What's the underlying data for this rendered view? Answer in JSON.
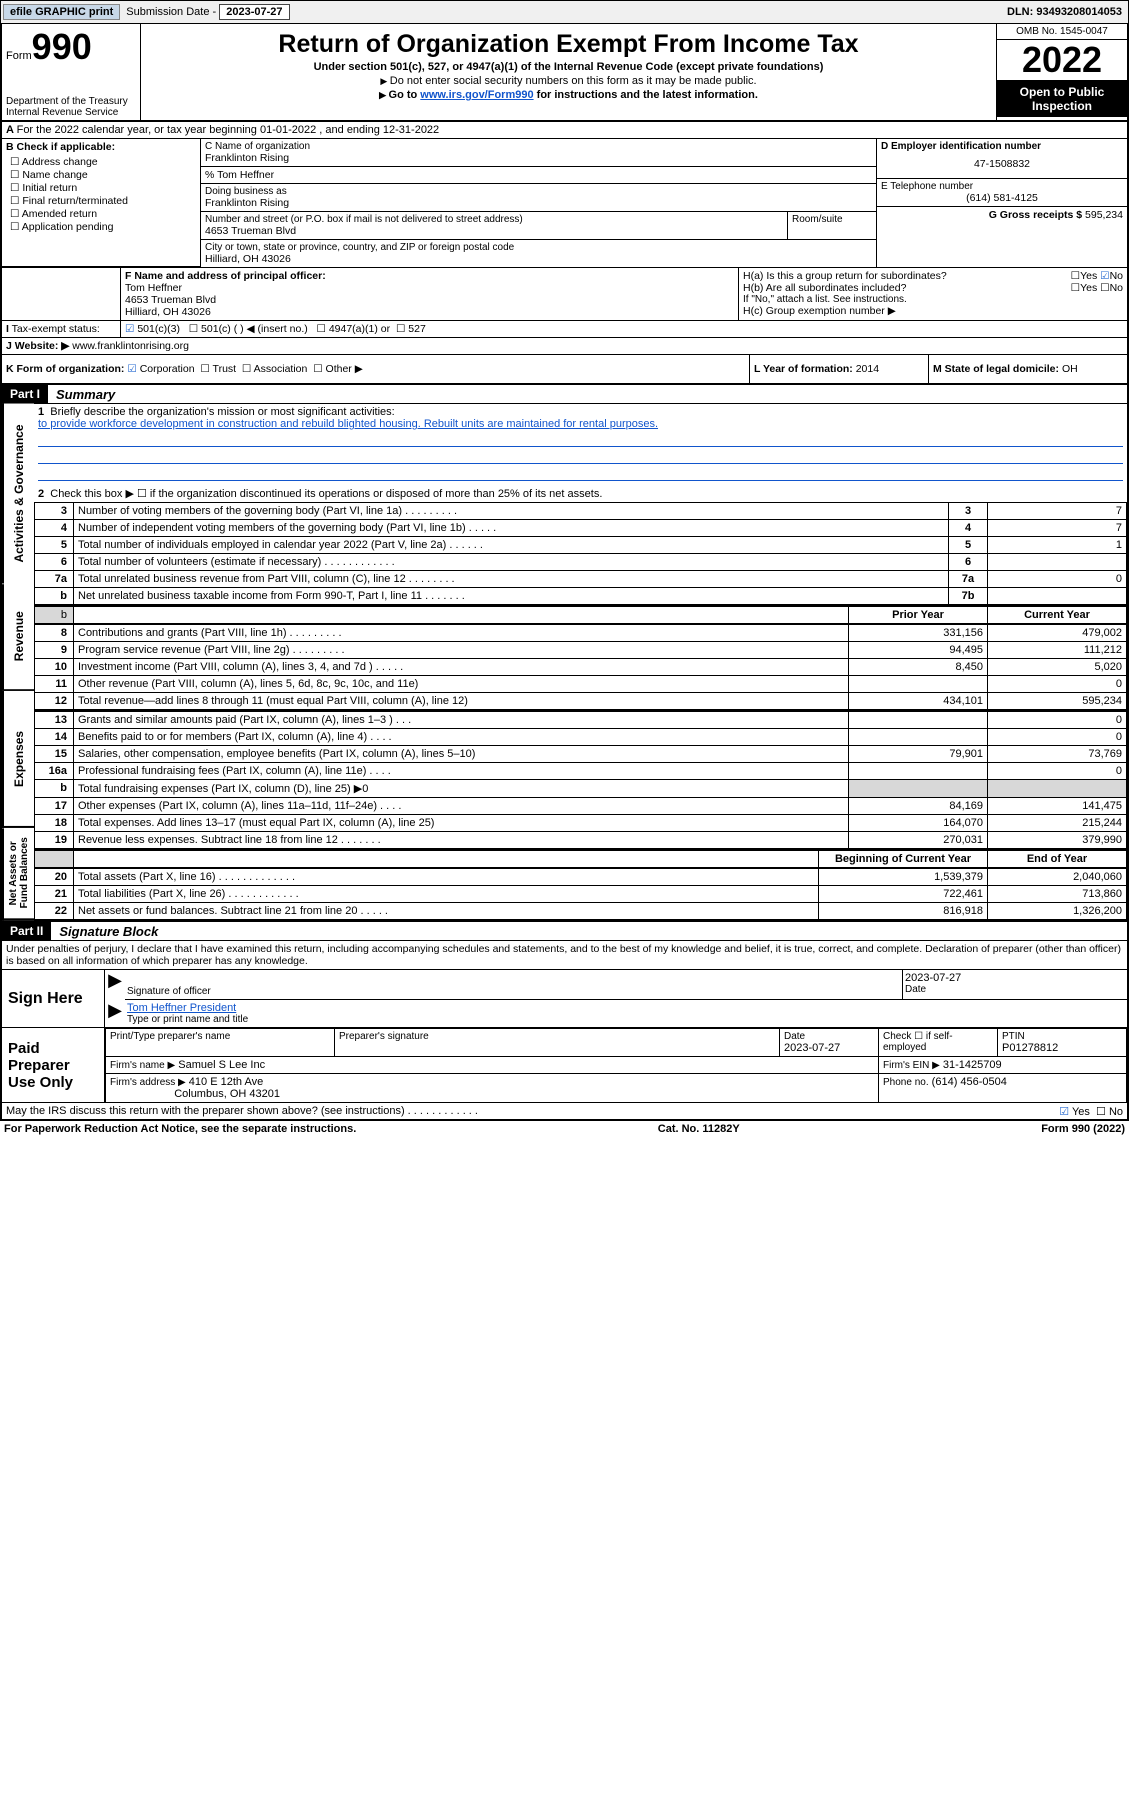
{
  "top": {
    "efile": "efile GRAPHIC print",
    "subm_label": "Submission Date - ",
    "subm_date": "2023-07-27",
    "dln": "DLN: 93493208014053"
  },
  "header": {
    "form_word": "Form",
    "form_num": "990",
    "title": "Return of Organization Exempt From Income Tax",
    "sub1": "Under section 501(c), 527, or 4947(a)(1) of the Internal Revenue Code (except private foundations)",
    "sub2": "Do not enter social security numbers on this form as it may be made public.",
    "sub3_pre": "Go to ",
    "sub3_link": "www.irs.gov/Form990",
    "sub3_post": " for instructions and the latest information.",
    "dept1": "Department of the Treasury",
    "dept2": "Internal Revenue Service",
    "omb": "OMB No. 1545-0047",
    "year": "2022",
    "inspect": "Open to Public Inspection"
  },
  "a_line": "For the 2022 calendar year, or tax year beginning 01-01-2022   , and ending 12-31-2022",
  "b": {
    "title": "B Check if applicable:",
    "items": [
      "Address change",
      "Name change",
      "Initial return",
      "Final return/terminated",
      "Amended return",
      "Application pending"
    ]
  },
  "c": {
    "name_label": "C Name of organization",
    "name": "Franklinton Rising",
    "care": "% Tom Heffner",
    "dba_label": "Doing business as",
    "dba": "Franklinton Rising",
    "addr_label": "Number and street (or P.O. box if mail is not delivered to street address)",
    "room_label": "Room/suite",
    "addr": "4653 Trueman Blvd",
    "city_label": "City or town, state or province, country, and ZIP or foreign postal code",
    "city": "Hilliard, OH  43026"
  },
  "d": {
    "label": "D Employer identification number",
    "val": "47-1508832"
  },
  "e": {
    "label": "E Telephone number",
    "val": "(614) 581-4125"
  },
  "g": {
    "label": "G Gross receipts $",
    "val": "595,234"
  },
  "f": {
    "label": "F Name and address of principal officer:",
    "name": "Tom Heffner",
    "addr1": "4653 Trueman Blvd",
    "addr2": "Hilliard, OH  43026"
  },
  "h": {
    "a": "H(a)  Is this a group return for subordinates?",
    "b": "H(b)  Are all subordinates included?",
    "b_note": "If \"No,\" attach a list. See instructions.",
    "c": "H(c)  Group exemption number ▶",
    "yes": "Yes",
    "no": "No"
  },
  "i": {
    "label": "Tax-exempt status:",
    "opts": [
      "501(c)(3)",
      "501(c) (  ) ◀ (insert no.)",
      "4947(a)(1) or",
      "527"
    ]
  },
  "j": {
    "label": "Website: ▶",
    "val": "www.franklintonrising.org"
  },
  "k": {
    "label": "K Form of organization:",
    "opts": [
      "Corporation",
      "Trust",
      "Association",
      "Other ▶"
    ]
  },
  "l": {
    "label": "L Year of formation:",
    "val": "2014"
  },
  "m": {
    "label": "M State of legal domicile:",
    "val": "OH"
  },
  "part1": {
    "header": "Part I",
    "title": "Summary",
    "vlabel1": "Activities & Governance",
    "vlabel2": "Revenue",
    "vlabel3": "Expenses",
    "vlabel4": "Net Assets or Fund Balances",
    "line1": "Briefly describe the organization's mission or most significant activities:",
    "mission": "to provide workforce development in construction and rebuild blighted housing. Rebuilt units are maintained for rental purposes.",
    "line2": "Check this box ▶ ☐  if the organization discontinued its operations or disposed of more than 25% of its net assets.",
    "rows_gov": [
      {
        "n": "3",
        "d": "Number of voting members of the governing body (Part VI, line 1a)  .    .    .    .    .    .    .    .    .",
        "box": "3",
        "v": "7"
      },
      {
        "n": "4",
        "d": "Number of independent voting members of the governing body (Part VI, line 1b)  .    .    .    .    .",
        "box": "4",
        "v": "7"
      },
      {
        "n": "5",
        "d": "Total number of individuals employed in calendar year 2022 (Part V, line 2a)  .    .    .    .    .    .",
        "box": "5",
        "v": "1"
      },
      {
        "n": "6",
        "d": "Total number of volunteers (estimate if necessary)  .    .    .    .    .    .    .    .    .    .    .    .",
        "box": "6",
        "v": ""
      },
      {
        "n": "7a",
        "d": "Total unrelated business revenue from Part VIII, column (C), line 12  .    .    .    .    .    .    .    .",
        "box": "7a",
        "v": "0"
      },
      {
        "n": "b",
        "d": "Net unrelated business taxable income from Form 990-T, Part I, line 11  .    .    .    .    .    .    .",
        "box": "7b",
        "v": ""
      }
    ],
    "col_prior": "Prior Year",
    "col_curr": "Current Year",
    "rows_rev": [
      {
        "n": "8",
        "d": "Contributions and grants (Part VIII, line 1h)  .    .    .    .    .    .    .    .    .",
        "p": "331,156",
        "c": "479,002"
      },
      {
        "n": "9",
        "d": "Program service revenue (Part VIII, line 2g)  .    .    .    .    .    .    .    .    .",
        "p": "94,495",
        "c": "111,212"
      },
      {
        "n": "10",
        "d": "Investment income (Part VIII, column (A), lines 3, 4, and 7d )  .    .    .    .    .",
        "p": "8,450",
        "c": "5,020"
      },
      {
        "n": "11",
        "d": "Other revenue (Part VIII, column (A), lines 5, 6d, 8c, 9c, 10c, and 11e)",
        "p": "",
        "c": "0"
      },
      {
        "n": "12",
        "d": "Total revenue—add lines 8 through 11 (must equal Part VIII, column (A), line 12)",
        "p": "434,101",
        "c": "595,234"
      }
    ],
    "rows_exp": [
      {
        "n": "13",
        "d": "Grants and similar amounts paid (Part IX, column (A), lines 1–3 )  .    .    .",
        "p": "",
        "c": "0"
      },
      {
        "n": "14",
        "d": "Benefits paid to or for members (Part IX, column (A), line 4)  .    .    .    .",
        "p": "",
        "c": "0"
      },
      {
        "n": "15",
        "d": "Salaries, other compensation, employee benefits (Part IX, column (A), lines 5–10)",
        "p": "79,901",
        "c": "73,769"
      },
      {
        "n": "16a",
        "d": "Professional fundraising fees (Part IX, column (A), line 11e)  .    .    .    .",
        "p": "",
        "c": "0"
      },
      {
        "n": "b",
        "d": "Total fundraising expenses (Part IX, column (D), line 25) ▶0",
        "p": "shade",
        "c": "shade"
      },
      {
        "n": "17",
        "d": "Other expenses (Part IX, column (A), lines 11a–11d, 11f–24e)  .    .    .    .",
        "p": "84,169",
        "c": "141,475"
      },
      {
        "n": "18",
        "d": "Total expenses. Add lines 13–17 (must equal Part IX, column (A), line 25)",
        "p": "164,070",
        "c": "215,244"
      },
      {
        "n": "19",
        "d": "Revenue less expenses. Subtract line 18 from line 12  .    .    .    .    .    .    .",
        "p": "270,031",
        "c": "379,990"
      }
    ],
    "col_begin": "Beginning of Current Year",
    "col_end": "End of Year",
    "rows_net": [
      {
        "n": "20",
        "d": "Total assets (Part X, line 16)  .    .    .    .    .    .    .    .    .    .    .    .    .",
        "p": "1,539,379",
        "c": "2,040,060"
      },
      {
        "n": "21",
        "d": "Total liabilities (Part X, line 26)  .    .    .    .    .    .    .    .    .    .    .    .",
        "p": "722,461",
        "c": "713,860"
      },
      {
        "n": "22",
        "d": "Net assets or fund balances. Subtract line 21 from line 20  .    .    .    .    .",
        "p": "816,918",
        "c": "1,326,200"
      }
    ]
  },
  "part2": {
    "header": "Part II",
    "title": "Signature Block",
    "penalty": "Under penalties of perjury, I declare that I have examined this return, including accompanying schedules and statements, and to the best of my knowledge and belief, it is true, correct, and complete. Declaration of preparer (other than officer) is based on all information of which preparer has any knowledge.",
    "sign_here": "Sign Here",
    "sig_officer": "Signature of officer",
    "sig_date": "2023-07-27",
    "date_label": "Date",
    "officer_name": "Tom Heffner  President",
    "officer_label": "Type or print name and title",
    "paid": "Paid Preparer Use Only",
    "pp_name_label": "Print/Type preparer's name",
    "pp_sig_label": "Preparer's signature",
    "pp_date_label": "Date",
    "pp_date": "2023-07-27",
    "pp_check": "Check ☐ if self-employed",
    "ptin_label": "PTIN",
    "ptin": "P01278812",
    "firm_name_label": "Firm's name    ▶",
    "firm_name": "Samuel S Lee Inc",
    "firm_ein_label": "Firm's EIN ▶",
    "firm_ein": "31-1425709",
    "firm_addr_label": "Firm's address ▶",
    "firm_addr1": "410 E 12th Ave",
    "firm_addr2": "Columbus, OH  43201",
    "phone_label": "Phone no.",
    "phone": "(614) 456-0504",
    "discuss": "May the IRS discuss this return with the preparer shown above? (see instructions)  .    .    .    .    .    .    .    .    .    .    .    ."
  },
  "footer": {
    "left": "For Paperwork Reduction Act Notice, see the separate instructions.",
    "mid": "Cat. No. 11282Y",
    "right": "Form 990 (2022)"
  },
  "colors": {
    "link": "#1155cc",
    "check": "#2a6cd1"
  }
}
